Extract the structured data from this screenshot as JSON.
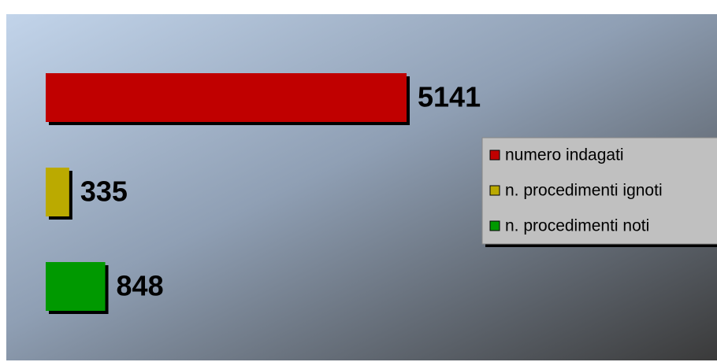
{
  "chart_data": {
    "type": "bar",
    "orientation": "horizontal",
    "series": [
      {
        "name": "numero indagati",
        "color": "#c00000",
        "values": [
          5141
        ]
      },
      {
        "name": "n. procedimenti ignoti",
        "color": "#bbaa00",
        "values": [
          335
        ]
      },
      {
        "name": "n. procedimenti noti",
        "color": "#009900",
        "values": [
          848
        ]
      }
    ],
    "legend": "right"
  }
}
